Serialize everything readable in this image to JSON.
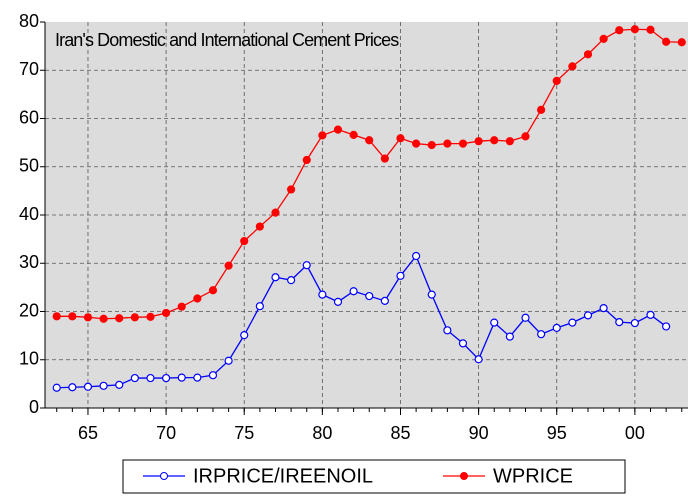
{
  "chart_data": {
    "type": "line",
    "title": "Iran's Domestic and International Cement Prices",
    "x": [
      1963,
      1964,
      1965,
      1966,
      1967,
      1968,
      1969,
      1970,
      1971,
      1972,
      1973,
      1974,
      1975,
      1976,
      1977,
      1978,
      1979,
      1980,
      1981,
      1982,
      1983,
      1984,
      1985,
      1986,
      1987,
      1988,
      1989,
      1990,
      1991,
      1992,
      1993,
      1994,
      1995,
      1996,
      1997,
      1998,
      1999,
      2000,
      2001,
      2002,
      2003
    ],
    "series": [
      {
        "name": "IRPRICE/IREENOIL",
        "color": "#0000ff",
        "filled": false,
        "values": [
          4.2,
          4.3,
          4.4,
          4.6,
          4.8,
          6.2,
          6.2,
          6.2,
          6.3,
          6.3,
          6.8,
          9.8,
          15.1,
          21.1,
          27.1,
          26.5,
          29.6,
          23.5,
          22.0,
          24.2,
          23.2,
          22.2,
          27.4,
          31.5,
          23.5,
          16.1,
          13.4,
          10.1,
          17.7,
          14.8,
          18.7,
          15.3,
          16.6,
          17.7,
          19.2,
          20.7,
          17.8,
          17.6,
          19.3,
          16.9,
          null
        ]
      },
      {
        "name": "WPRICE",
        "color": "#ff0000",
        "filled": true,
        "values": [
          19,
          19,
          18.8,
          18.5,
          18.6,
          18.8,
          18.9,
          19.7,
          21,
          22.7,
          24.4,
          29.5,
          34.6,
          37.6,
          40.5,
          45.3,
          51.4,
          56.5,
          57.7,
          56.6,
          55.5,
          51.7,
          55.9,
          54.8,
          54.5,
          54.8,
          54.8,
          55.3,
          55.5,
          55.3,
          56.3,
          61.8,
          67.8,
          70.8,
          73.3,
          76.5,
          78.3,
          78.5,
          78.4,
          75.9,
          75.8
        ]
      }
    ],
    "xlim": [
      1962.25,
      2003.4
    ],
    "xticks": [
      {
        "value": 1965,
        "label": "65"
      },
      {
        "value": 1970,
        "label": "70"
      },
      {
        "value": 1975,
        "label": "75"
      },
      {
        "value": 1980,
        "label": "80"
      },
      {
        "value": 1985,
        "label": "85"
      },
      {
        "value": 1990,
        "label": "90"
      },
      {
        "value": 1995,
        "label": "95"
      },
      {
        "value": 2000,
        "label": "00"
      }
    ],
    "ylim": [
      0,
      80
    ],
    "yticks": [
      0,
      10,
      20,
      30,
      40,
      50,
      60,
      70,
      80
    ],
    "grid": true,
    "legend": "bottom"
  }
}
